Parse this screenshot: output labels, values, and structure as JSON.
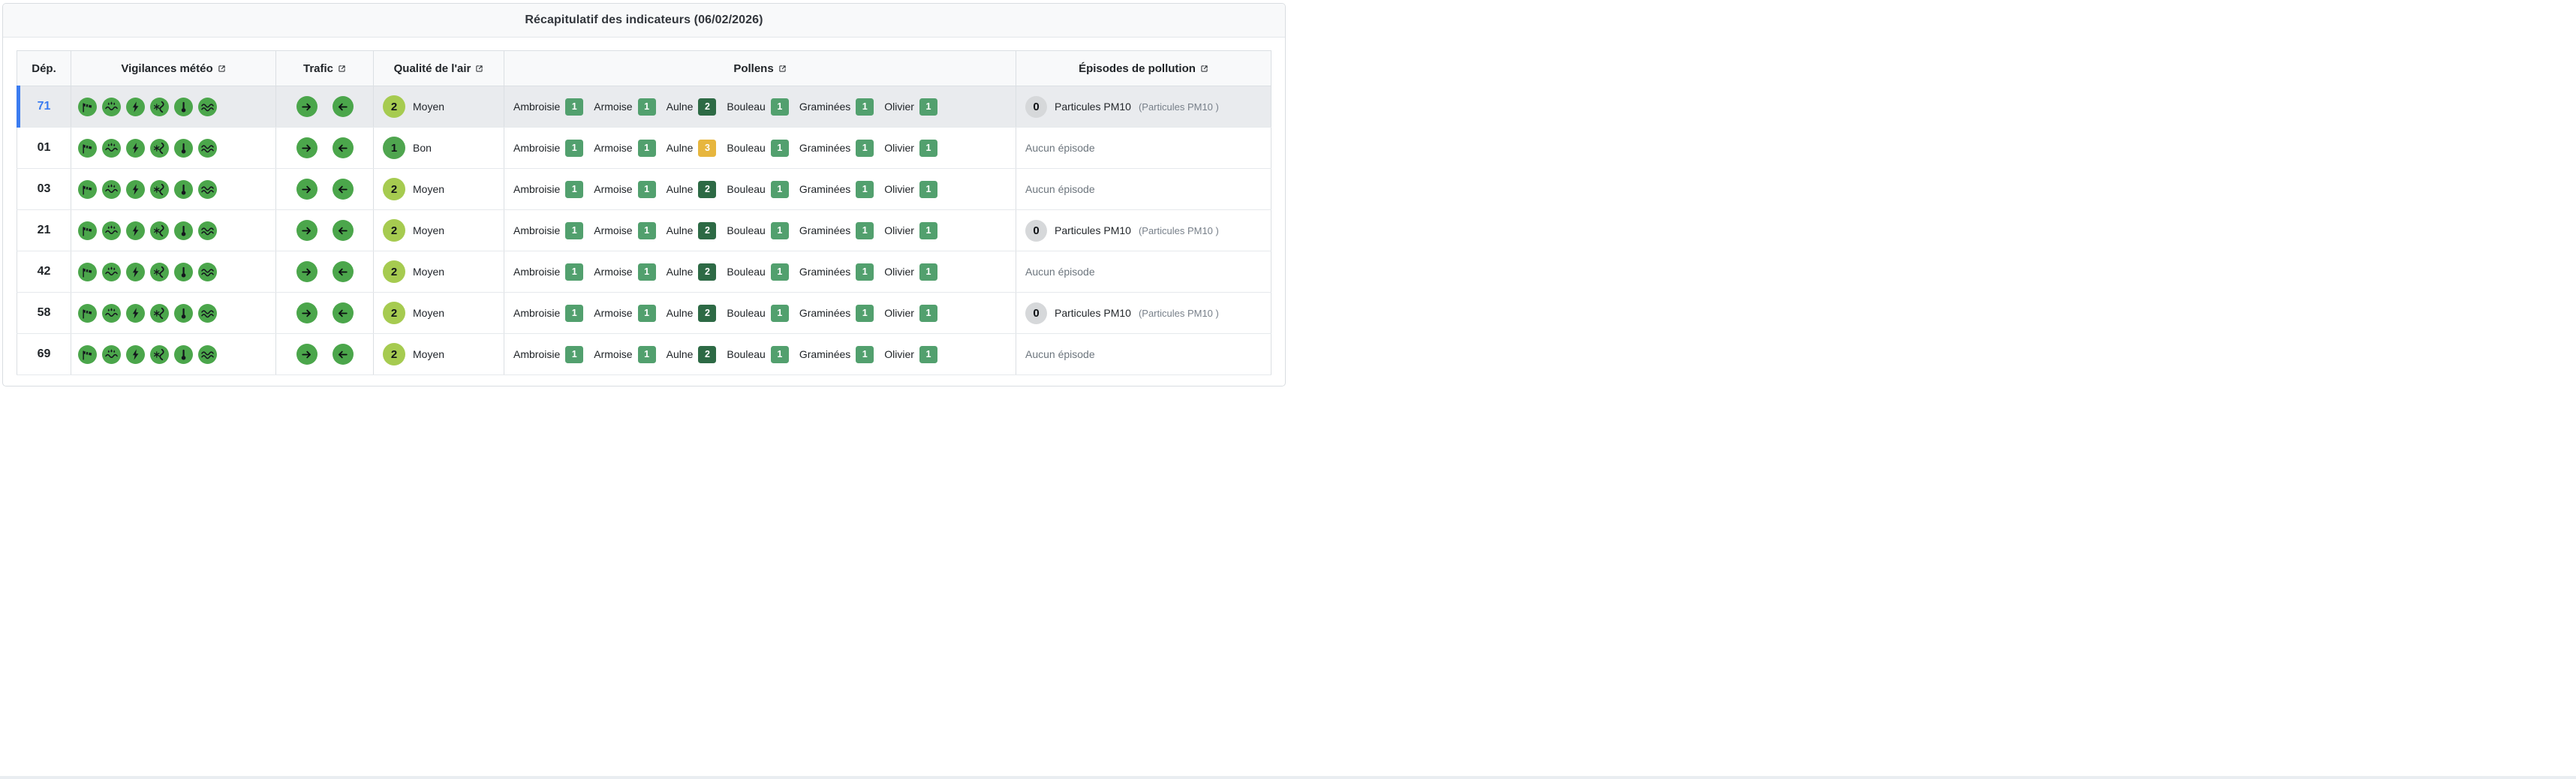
{
  "title": "Récapitulatif des indicateurs (06/02/2026)",
  "colors": {
    "accent_blue": "#3b7cf0",
    "vigilance_green": "#4ba64b",
    "trafic_green": "#4ba64b",
    "quality_bon_green": "#4fa54f",
    "quality_moyen_yellow_green": "#a6cb50",
    "pollen_level1_green": "#52a06e",
    "pollen_level2_dark_green": "#2d6a45",
    "pollen_level3_orange": "#e7b63e",
    "episode_circle_gray": "#d6d8da",
    "glyph_dark": "#14161d"
  },
  "table": {
    "columns": [
      {
        "label": "Dép.",
        "external_link": false
      },
      {
        "label": "Vigilances météo",
        "external_link": true
      },
      {
        "label": "Trafic",
        "external_link": true
      },
      {
        "label": "Qualité de l'air",
        "external_link": true
      },
      {
        "label": "Pollens",
        "external_link": true
      },
      {
        "label": "Épisodes de pollution",
        "external_link": true
      }
    ],
    "vigilance_icons": [
      "wind-sock",
      "rain-flood",
      "thunderstorm",
      "snow-ice",
      "thermometer",
      "waves"
    ],
    "trafic_icons": [
      "arrow-right",
      "arrow-left"
    ],
    "rows": [
      {
        "dep": "71",
        "selected": true,
        "quality": {
          "value": "2",
          "label": "Moyen",
          "color": "#a6cb50"
        },
        "pollens": [
          {
            "name": "Ambroisie",
            "value": "1",
            "color": "#52a06e"
          },
          {
            "name": "Armoise",
            "value": "1",
            "color": "#52a06e"
          },
          {
            "name": "Aulne",
            "value": "2",
            "color": "#2d6a45"
          },
          {
            "name": "Bouleau",
            "value": "1",
            "color": "#52a06e"
          },
          {
            "name": "Graminées",
            "value": "1",
            "color": "#52a06e"
          },
          {
            "name": "Olivier",
            "value": "1",
            "color": "#52a06e"
          }
        ],
        "episode": {
          "none": false,
          "count": "0",
          "label": "Particules PM10",
          "detail": "(Particules PM10 )"
        }
      },
      {
        "dep": "01",
        "selected": false,
        "quality": {
          "value": "1",
          "label": "Bon",
          "color": "#4fa54f"
        },
        "pollens": [
          {
            "name": "Ambroisie",
            "value": "1",
            "color": "#52a06e"
          },
          {
            "name": "Armoise",
            "value": "1",
            "color": "#52a06e"
          },
          {
            "name": "Aulne",
            "value": "3",
            "color": "#e7b63e"
          },
          {
            "name": "Bouleau",
            "value": "1",
            "color": "#52a06e"
          },
          {
            "name": "Graminées",
            "value": "1",
            "color": "#52a06e"
          },
          {
            "name": "Olivier",
            "value": "1",
            "color": "#52a06e"
          }
        ],
        "episode": {
          "none": true,
          "text": "Aucun épisode"
        }
      },
      {
        "dep": "03",
        "selected": false,
        "quality": {
          "value": "2",
          "label": "Moyen",
          "color": "#a6cb50"
        },
        "pollens": [
          {
            "name": "Ambroisie",
            "value": "1",
            "color": "#52a06e"
          },
          {
            "name": "Armoise",
            "value": "1",
            "color": "#52a06e"
          },
          {
            "name": "Aulne",
            "value": "2",
            "color": "#2d6a45"
          },
          {
            "name": "Bouleau",
            "value": "1",
            "color": "#52a06e"
          },
          {
            "name": "Graminées",
            "value": "1",
            "color": "#52a06e"
          },
          {
            "name": "Olivier",
            "value": "1",
            "color": "#52a06e"
          }
        ],
        "episode": {
          "none": true,
          "text": "Aucun épisode"
        }
      },
      {
        "dep": "21",
        "selected": false,
        "quality": {
          "value": "2",
          "label": "Moyen",
          "color": "#a6cb50"
        },
        "pollens": [
          {
            "name": "Ambroisie",
            "value": "1",
            "color": "#52a06e"
          },
          {
            "name": "Armoise",
            "value": "1",
            "color": "#52a06e"
          },
          {
            "name": "Aulne",
            "value": "2",
            "color": "#2d6a45"
          },
          {
            "name": "Bouleau",
            "value": "1",
            "color": "#52a06e"
          },
          {
            "name": "Graminées",
            "value": "1",
            "color": "#52a06e"
          },
          {
            "name": "Olivier",
            "value": "1",
            "color": "#52a06e"
          }
        ],
        "episode": {
          "none": false,
          "count": "0",
          "label": "Particules PM10",
          "detail": "(Particules PM10 )"
        }
      },
      {
        "dep": "42",
        "selected": false,
        "quality": {
          "value": "2",
          "label": "Moyen",
          "color": "#a6cb50"
        },
        "pollens": [
          {
            "name": "Ambroisie",
            "value": "1",
            "color": "#52a06e"
          },
          {
            "name": "Armoise",
            "value": "1",
            "color": "#52a06e"
          },
          {
            "name": "Aulne",
            "value": "2",
            "color": "#2d6a45"
          },
          {
            "name": "Bouleau",
            "value": "1",
            "color": "#52a06e"
          },
          {
            "name": "Graminées",
            "value": "1",
            "color": "#52a06e"
          },
          {
            "name": "Olivier",
            "value": "1",
            "color": "#52a06e"
          }
        ],
        "episode": {
          "none": true,
          "text": "Aucun épisode"
        }
      },
      {
        "dep": "58",
        "selected": false,
        "quality": {
          "value": "2",
          "label": "Moyen",
          "color": "#a6cb50"
        },
        "pollens": [
          {
            "name": "Ambroisie",
            "value": "1",
            "color": "#52a06e"
          },
          {
            "name": "Armoise",
            "value": "1",
            "color": "#52a06e"
          },
          {
            "name": "Aulne",
            "value": "2",
            "color": "#2d6a45"
          },
          {
            "name": "Bouleau",
            "value": "1",
            "color": "#52a06e"
          },
          {
            "name": "Graminées",
            "value": "1",
            "color": "#52a06e"
          },
          {
            "name": "Olivier",
            "value": "1",
            "color": "#52a06e"
          }
        ],
        "episode": {
          "none": false,
          "count": "0",
          "label": "Particules PM10",
          "detail": "(Particules PM10 )"
        }
      },
      {
        "dep": "69",
        "selected": false,
        "quality": {
          "value": "2",
          "label": "Moyen",
          "color": "#a6cb50"
        },
        "pollens": [
          {
            "name": "Ambroisie",
            "value": "1",
            "color": "#52a06e"
          },
          {
            "name": "Armoise",
            "value": "1",
            "color": "#52a06e"
          },
          {
            "name": "Aulne",
            "value": "2",
            "color": "#2d6a45"
          },
          {
            "name": "Bouleau",
            "value": "1",
            "color": "#52a06e"
          },
          {
            "name": "Graminées",
            "value": "1",
            "color": "#52a06e"
          },
          {
            "name": "Olivier",
            "value": "1",
            "color": "#52a06e"
          }
        ],
        "episode": {
          "none": true,
          "text": "Aucun épisode"
        }
      }
    ]
  }
}
